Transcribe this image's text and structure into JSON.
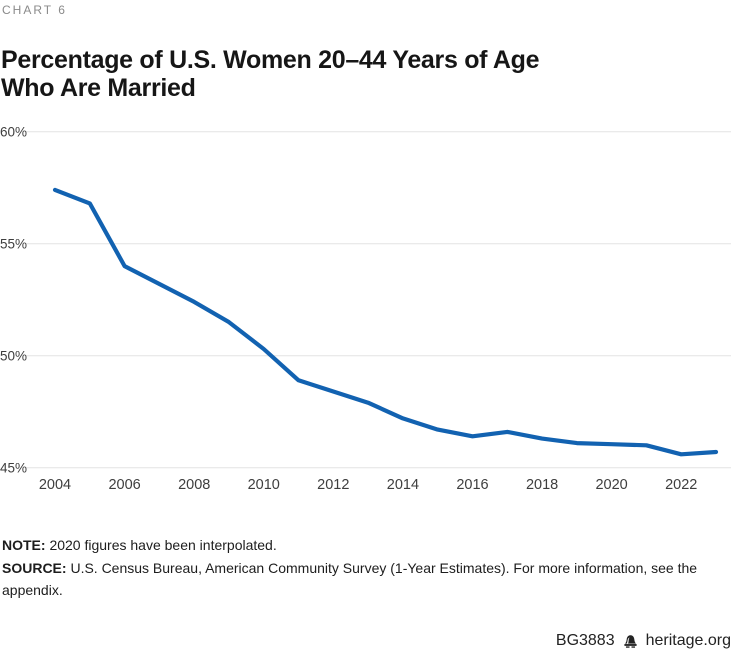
{
  "theme": {
    "accent_blue": "#1262b1",
    "gridline": "#e4e4e4",
    "axis_text": "#3e3e3e",
    "muted_label": "#8a8a8a",
    "logo_dark": "#232323"
  },
  "header": {
    "chart_label": "CHART 6",
    "title_line1": "Percentage of U.S. Women 20–44 Years of Age",
    "title_line2": "Who Are Married"
  },
  "chart_data": {
    "type": "line",
    "title": "Percentage of U.S. Women 20–44 Years of Age Who Are Married",
    "xlabel": "",
    "ylabel": "",
    "x": [
      2004,
      2005,
      2006,
      2007,
      2008,
      2009,
      2010,
      2011,
      2012,
      2013,
      2014,
      2015,
      2016,
      2017,
      2018,
      2019,
      2020,
      2021,
      2022,
      2023
    ],
    "series": [
      {
        "name": "Percent of U.S. women 20-44 who are married",
        "color": "#1262b1",
        "values": [
          57.4,
          56.8,
          54.0,
          53.2,
          52.4,
          51.5,
          50.3,
          48.9,
          48.4,
          47.9,
          47.2,
          46.7,
          46.4,
          46.6,
          46.3,
          46.1,
          46.05,
          46.0,
          45.6,
          45.7
        ]
      }
    ],
    "ylim": [
      45,
      60
    ],
    "yticks": [
      60,
      55,
      50,
      45
    ],
    "ytick_suffix": "%",
    "xticks": [
      2004,
      2006,
      2008,
      2010,
      2012,
      2014,
      2016,
      2018,
      2020,
      2022
    ],
    "grid": "horizontal",
    "legend": "none"
  },
  "notes": {
    "note_label": "NOTE:",
    "note_text": "2020 figures have been interpolated.",
    "source_label": "SOURCE:",
    "source_text": "U.S. Census Bureau, American Community Survey (1-Year Estimates). For more information, see the appendix."
  },
  "footer": {
    "doc_id": "BG3883",
    "site": "heritage.org"
  }
}
